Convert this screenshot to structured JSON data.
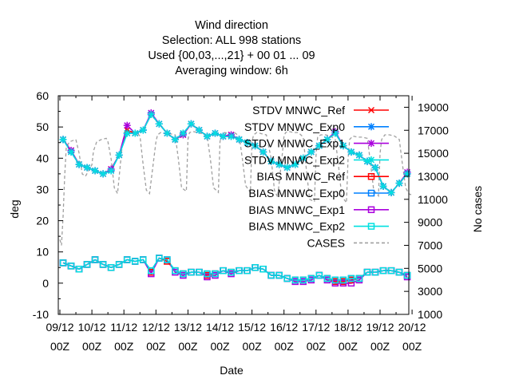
{
  "chart_data": {
    "type": "line",
    "title_lines": [
      "Wind direction",
      "Selection: ALL    998 stations",
      "Used {00,03,...,21} + 00 01 ... 09",
      "Averaging window:  6h"
    ],
    "xlabel": "Date",
    "ylabel": "deg",
    "y2label": "No cases",
    "ylim": [
      -10,
      60
    ],
    "y2lim": [
      1000,
      20000
    ],
    "yticks": [
      -10,
      0,
      10,
      20,
      30,
      40,
      50,
      60
    ],
    "y2ticks": [
      1000,
      3000,
      5000,
      7000,
      9000,
      11000,
      13000,
      15000,
      17000,
      19000
    ],
    "xticks": [
      {
        "day": 0,
        "top": "09/12",
        "bottom": "00Z"
      },
      {
        "day": 1,
        "top": "10/12",
        "bottom": "00Z"
      },
      {
        "day": 2,
        "top": "11/12",
        "bottom": "00Z"
      },
      {
        "day": 3,
        "top": "12/12",
        "bottom": "00Z"
      },
      {
        "day": 4,
        "top": "13/12",
        "bottom": "00Z"
      },
      {
        "day": 5,
        "top": "14/12",
        "bottom": "00Z"
      },
      {
        "day": 6,
        "top": "15/12",
        "bottom": "00Z"
      },
      {
        "day": 7,
        "top": "16/12",
        "bottom": "00Z"
      },
      {
        "day": 8,
        "top": "17/12",
        "bottom": "00Z"
      },
      {
        "day": 9,
        "top": "18/12",
        "bottom": "00Z"
      },
      {
        "day": 10,
        "top": "19/12",
        "bottom": "00Z"
      },
      {
        "day": 11,
        "top": "20/12",
        "bottom": "00Z"
      }
    ],
    "x_days": [
      0.1,
      0.35,
      0.6,
      0.85,
      1.1,
      1.35,
      1.6,
      1.85,
      2.1,
      2.35,
      2.6,
      2.85,
      3.1,
      3.35,
      3.6,
      3.85,
      4.1,
      4.35,
      4.6,
      4.85,
      5.1,
      5.35,
      5.6,
      5.85,
      6.1,
      6.35,
      6.6,
      6.85,
      7.1,
      7.35,
      7.6,
      7.85,
      8.1,
      8.35,
      8.6,
      8.85,
      9.1,
      9.35,
      9.6,
      9.85,
      10.1,
      10.35,
      10.6,
      10.85
    ],
    "legend_position": "top-right",
    "grid": false,
    "series": [
      {
        "name": "STDV MNWC_Ref",
        "color": "#ff0000",
        "marker": "x",
        "values": [
          46,
          42.5,
          38,
          37,
          36,
          35,
          36.5,
          41,
          49,
          48,
          49,
          54,
          51,
          48,
          46,
          47.5,
          51,
          49,
          47,
          48,
          47,
          47.5,
          46,
          45,
          44,
          42,
          39,
          38,
          37,
          38,
          40,
          42,
          44,
          46,
          48,
          44,
          42,
          41,
          39,
          37,
          31,
          29,
          32,
          35
        ]
      },
      {
        "name": "STDV MNWC_Exp0",
        "color": "#0080ff",
        "marker": "star",
        "values": [
          46,
          42,
          38,
          37,
          36,
          35,
          36,
          41,
          48,
          48,
          49,
          54,
          51,
          48,
          46,
          48,
          51,
          49,
          47,
          48,
          47,
          47,
          46,
          45,
          44,
          42,
          39,
          38,
          37,
          38,
          40,
          42,
          44,
          46,
          48,
          44,
          42,
          41,
          39,
          37,
          31,
          29,
          32,
          35
        ]
      },
      {
        "name": "STDV MNWC_Exp1",
        "color": "#aa00dd",
        "marker": "star",
        "values": [
          46,
          42.5,
          38,
          37,
          36,
          35,
          36.5,
          41,
          50.5,
          48,
          49,
          54.5,
          51,
          48,
          46,
          47.5,
          51,
          49,
          47,
          48,
          47,
          47.5,
          46,
          45,
          44,
          42,
          39,
          38,
          37,
          38,
          40,
          42,
          44,
          46,
          48.5,
          44,
          42,
          41,
          39,
          37,
          31,
          29,
          32,
          35.5
        ]
      },
      {
        "name": "STDV MNWC_Exp2",
        "color": "#00e0e0",
        "marker": "star",
        "values": [
          46,
          42,
          38,
          37,
          36,
          35,
          36,
          41,
          48,
          48,
          49,
          54,
          51,
          48,
          46,
          48,
          51,
          49,
          47,
          48,
          47,
          47,
          46,
          45,
          44,
          42,
          39,
          38,
          37,
          38,
          40,
          42,
          44,
          46,
          48,
          44,
          42,
          41,
          39,
          37,
          31,
          29,
          32,
          35
        ]
      },
      {
        "name": "BIAS MNWC_Ref",
        "color": "#ff0000",
        "marker": "square",
        "values": [
          6.5,
          5.5,
          4.5,
          6,
          7.5,
          6,
          5,
          6,
          7.5,
          7,
          7.5,
          3.5,
          8,
          7,
          4,
          3,
          3.5,
          3.5,
          2.5,
          3,
          4,
          3.5,
          4,
          4,
          5,
          4.5,
          2.5,
          2.5,
          1.5,
          1,
          1,
          1.5,
          2.5,
          1.5,
          0.5,
          0.5,
          1,
          1.5,
          3.5,
          3.5,
          4,
          4,
          3.5,
          2.5
        ]
      },
      {
        "name": "BIAS MNWC_Exp0",
        "color": "#0080ff",
        "marker": "square",
        "values": [
          6.5,
          5.5,
          4.5,
          6,
          7.5,
          6,
          5,
          6,
          7.5,
          7,
          7.5,
          4,
          8,
          7.5,
          4,
          3,
          3.5,
          3.5,
          3,
          3,
          4,
          3.5,
          4,
          4,
          5,
          4.5,
          2.5,
          2.5,
          1.5,
          1,
          1,
          1.5,
          2.5,
          1.5,
          1,
          1,
          1.5,
          1.5,
          3.5,
          3.5,
          4,
          4,
          3.5,
          2.5
        ]
      },
      {
        "name": "BIAS MNWC_Exp1",
        "color": "#aa00dd",
        "marker": "square",
        "values": [
          6.5,
          5.5,
          4.5,
          6,
          7.5,
          6,
          5,
          6,
          7.5,
          7,
          7.5,
          3,
          8,
          7.5,
          3.5,
          2.5,
          3.5,
          3.5,
          2,
          2.5,
          4,
          3,
          4,
          4,
          5,
          4.5,
          2.5,
          2.5,
          1.5,
          0.5,
          0.5,
          1,
          2.5,
          1,
          0,
          0,
          0,
          1,
          3.5,
          3.5,
          4,
          4,
          3.5,
          2
        ]
      },
      {
        "name": "BIAS MNWC_Exp2",
        "color": "#00e0e0",
        "marker": "square",
        "values": [
          6.5,
          5.5,
          4.5,
          6,
          7.5,
          6,
          5,
          6,
          7.5,
          7,
          7.5,
          4,
          8,
          7.5,
          4,
          3,
          3.5,
          3.5,
          3,
          3,
          4,
          3.5,
          4,
          4,
          5,
          4.5,
          2.5,
          2.5,
          1.5,
          1,
          1,
          1.5,
          2.5,
          1.5,
          1,
          1,
          1.5,
          1.5,
          3.5,
          3.5,
          4,
          4,
          3.5,
          2.5
        ]
      }
    ],
    "cases": {
      "name": "CASES",
      "color": "#a0a0a0",
      "x_days": [
        0,
        0.05,
        0.1,
        0.15,
        0.2,
        0.3,
        0.5,
        0.6,
        0.7,
        0.8,
        1.0,
        1.05,
        1.15,
        1.3,
        1.45,
        1.5,
        1.6,
        1.7,
        1.8,
        1.95,
        2.0,
        2.05,
        2.15,
        2.3,
        2.4,
        2.5,
        2.6,
        2.7,
        2.8,
        3.0,
        3.05,
        3.15,
        3.3,
        3.45,
        3.6,
        3.7,
        3.8,
        3.95,
        4.0,
        4.05,
        4.15,
        4.3,
        4.45,
        4.6,
        4.7,
        4.8,
        4.95,
        5.0,
        5.05,
        5.15,
        5.3,
        5.45,
        5.6,
        5.7,
        5.8,
        5.95,
        6.0,
        6.05,
        6.15,
        6.3,
        6.45,
        6.6,
        6.7,
        6.8,
        6.95,
        7.0,
        7.05,
        7.15,
        7.3,
        7.45,
        7.6,
        7.7,
        7.8,
        7.95,
        8.0,
        8.05,
        8.15,
        8.3,
        8.45,
        8.6,
        8.7,
        8.8,
        8.95,
        9.0,
        9.05,
        9.15,
        9.3,
        9.45,
        9.6,
        9.7,
        9.8,
        9.95,
        10.0,
        10.05,
        10.15,
        10.3,
        10.45,
        10.6,
        10.7,
        10.8,
        10.9,
        10.95,
        11.0
      ],
      "values": [
        7500,
        7000,
        9500,
        13000,
        15500,
        16000,
        16200,
        15000,
        13200,
        13000,
        14000,
        15200,
        16000,
        16200,
        16300,
        16000,
        14500,
        12000,
        11500,
        15800,
        16500,
        16800,
        16700,
        16700,
        16800,
        16500,
        14000,
        11800,
        11500,
        16000,
        16600,
        16800,
        16700,
        16700,
        16600,
        14500,
        12000,
        11700,
        16200,
        16800,
        16900,
        16800,
        16700,
        16500,
        14500,
        12000,
        11600,
        16000,
        16600,
        16800,
        16700,
        16800,
        16500,
        14500,
        12200,
        11600,
        16000,
        16600,
        16800,
        16700,
        16600,
        14500,
        11800,
        11200,
        15000,
        16500,
        16800,
        16900,
        16800,
        16800,
        16400,
        13500,
        11000,
        10800,
        14800,
        16400,
        16600,
        16600,
        16500,
        16200,
        14000,
        11300,
        10700,
        14500,
        16200,
        16500,
        16400,
        16400,
        16300,
        14200,
        11800,
        11300,
        15000,
        16200,
        16600,
        16600,
        16500,
        16200,
        14000,
        12000,
        11500,
        11400,
        11600
      ]
    }
  }
}
